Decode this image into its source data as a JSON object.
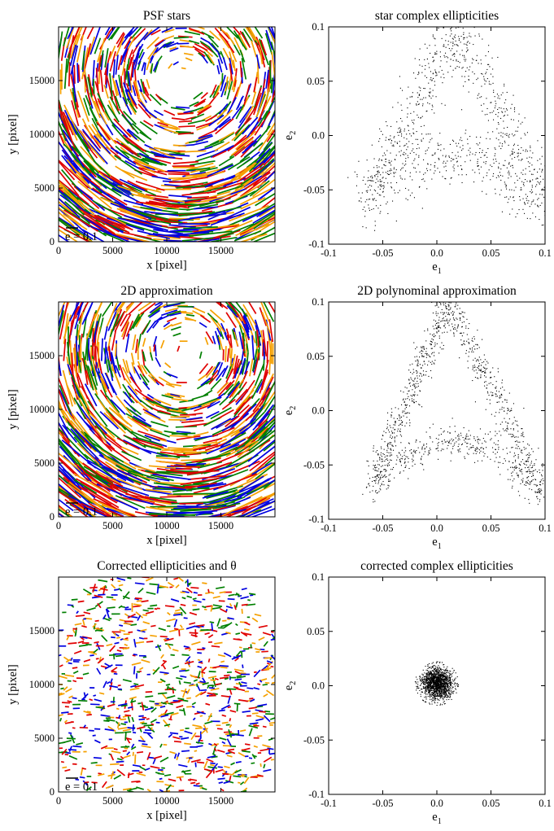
{
  "figure": {
    "colors": {
      "ink": "#000000",
      "red": "#e00000",
      "blue": "#0000e0",
      "green": "#008000",
      "orange": "#f5a000"
    }
  },
  "chart_data": [
    {
      "id": "psf-stars",
      "type": "whisker",
      "title": "PSF stars",
      "xlabel": "x [pixel]",
      "ylabel": "y [pixel]",
      "xlim": [
        0,
        20000
      ],
      "ylim": [
        0,
        20000
      ],
      "xticks": [
        0,
        5000,
        10000,
        15000
      ],
      "yticks": [
        0,
        5000,
        10000,
        15000
      ],
      "scale_label": "e = 0.1",
      "pattern": {
        "field": "swirl",
        "center": [
          11500,
          15500
        ],
        "magnitude": 1.0,
        "line_density": "dense"
      },
      "series_colors": [
        "#e00000",
        "#0000e0",
        "#008000",
        "#f5a000"
      ]
    },
    {
      "id": "star-complex-ellipticities",
      "type": "scatter",
      "title": "star complex ellipticities",
      "xlabel": "e",
      "xlabel_sub": "1",
      "ylabel": "e",
      "ylabel_sub": "2",
      "xlim": [
        -0.1,
        0.1
      ],
      "ylim": [
        -0.1,
        0.1
      ],
      "xticks": [
        -0.1,
        -0.05,
        0.0,
        0.05,
        0.1
      ],
      "yticks": [
        -0.1,
        -0.05,
        0.0,
        0.05,
        0.1
      ],
      "xticklabels": [
        "-0.1",
        "-0.05",
        "0.0",
        "0.05",
        "0.1"
      ],
      "yticklabels": [
        "-0.1",
        "-0.05",
        "0.0",
        "0.05",
        "0.1"
      ],
      "distribution": {
        "shape": "triangle",
        "vertices": [
          [
            -0.065,
            -0.06
          ],
          [
            0.02,
            0.1
          ],
          [
            0.1,
            -0.065
          ]
        ],
        "spread": 0.014,
        "count": 1100
      }
    },
    {
      "id": "2d-approximation",
      "type": "whisker",
      "title": "2D approximation",
      "xlabel": "x [pixel]",
      "ylabel": "y [pixel]",
      "xlim": [
        0,
        20000
      ],
      "ylim": [
        0,
        20000
      ],
      "xticks": [
        0,
        5000,
        10000,
        15000
      ],
      "yticks": [
        0,
        5000,
        10000,
        15000
      ],
      "scale_label": "e = 0.1",
      "pattern": {
        "field": "swirl",
        "center": [
          11500,
          15500
        ],
        "magnitude": 1.0,
        "line_density": "dense"
      },
      "series_colors": [
        "#e00000",
        "#0000e0",
        "#008000",
        "#f5a000"
      ]
    },
    {
      "id": "2d-polynominal-approximation",
      "type": "scatter",
      "title": "2D polynominal approximation",
      "xlabel": "e",
      "xlabel_sub": "1",
      "ylabel": "e",
      "ylabel_sub": "2",
      "xlim": [
        -0.1,
        0.1
      ],
      "ylim": [
        -0.1,
        0.1
      ],
      "xticks": [
        -0.1,
        -0.05,
        0.0,
        0.05,
        0.1
      ],
      "yticks": [
        -0.1,
        -0.05,
        0.0,
        0.05,
        0.1
      ],
      "xticklabels": [
        "-0.1",
        "-0.05",
        "0.0",
        "0.05",
        "0.1"
      ],
      "yticklabels": [
        "-0.1",
        "-0.05",
        "0.0",
        "0.05",
        "0.1"
      ],
      "distribution": {
        "shape": "triangle",
        "vertices": [
          [
            -0.06,
            -0.07
          ],
          [
            0.01,
            0.1
          ],
          [
            0.1,
            -0.075
          ]
        ],
        "spread": 0.008,
        "count": 1300
      }
    },
    {
      "id": "corrected-ellipticities",
      "type": "whisker",
      "title": "Corrected ellipticities and θ",
      "xlabel": "x [pixel]",
      "ylabel": "y [pixel]",
      "xlim": [
        0,
        20000
      ],
      "ylim": [
        0,
        20000
      ],
      "xticks": [
        0,
        5000,
        10000,
        15000
      ],
      "yticks": [
        0,
        5000,
        10000,
        15000
      ],
      "scale_label": "e = 0.1",
      "pattern": {
        "field": "random",
        "magnitude": 0.25,
        "line_density": "dense"
      },
      "series_colors": [
        "#e00000",
        "#0000e0",
        "#008000",
        "#f5a000"
      ]
    },
    {
      "id": "corrected-complex-ellipticities",
      "type": "scatter",
      "title": "corrected complex ellipticities",
      "xlabel": "e",
      "xlabel_sub": "1",
      "ylabel": "e",
      "ylabel_sub": "2",
      "xlim": [
        -0.1,
        0.1
      ],
      "ylim": [
        -0.1,
        0.1
      ],
      "xticks": [
        -0.1,
        -0.05,
        0.0,
        0.05,
        0.1
      ],
      "yticks": [
        -0.1,
        -0.05,
        0.0,
        0.05,
        0.1
      ],
      "xticklabels": [
        "-0.1",
        "-0.05",
        "0.0",
        "0.05",
        "0.1"
      ],
      "yticklabels": [
        "-0.1",
        "-0.05",
        "0.0",
        "0.05",
        "0.1"
      ],
      "distribution": {
        "shape": "blob",
        "center": [
          0.0,
          0.002
        ],
        "sigma": 0.007,
        "radius_max": 0.02,
        "count": 1500
      }
    }
  ]
}
